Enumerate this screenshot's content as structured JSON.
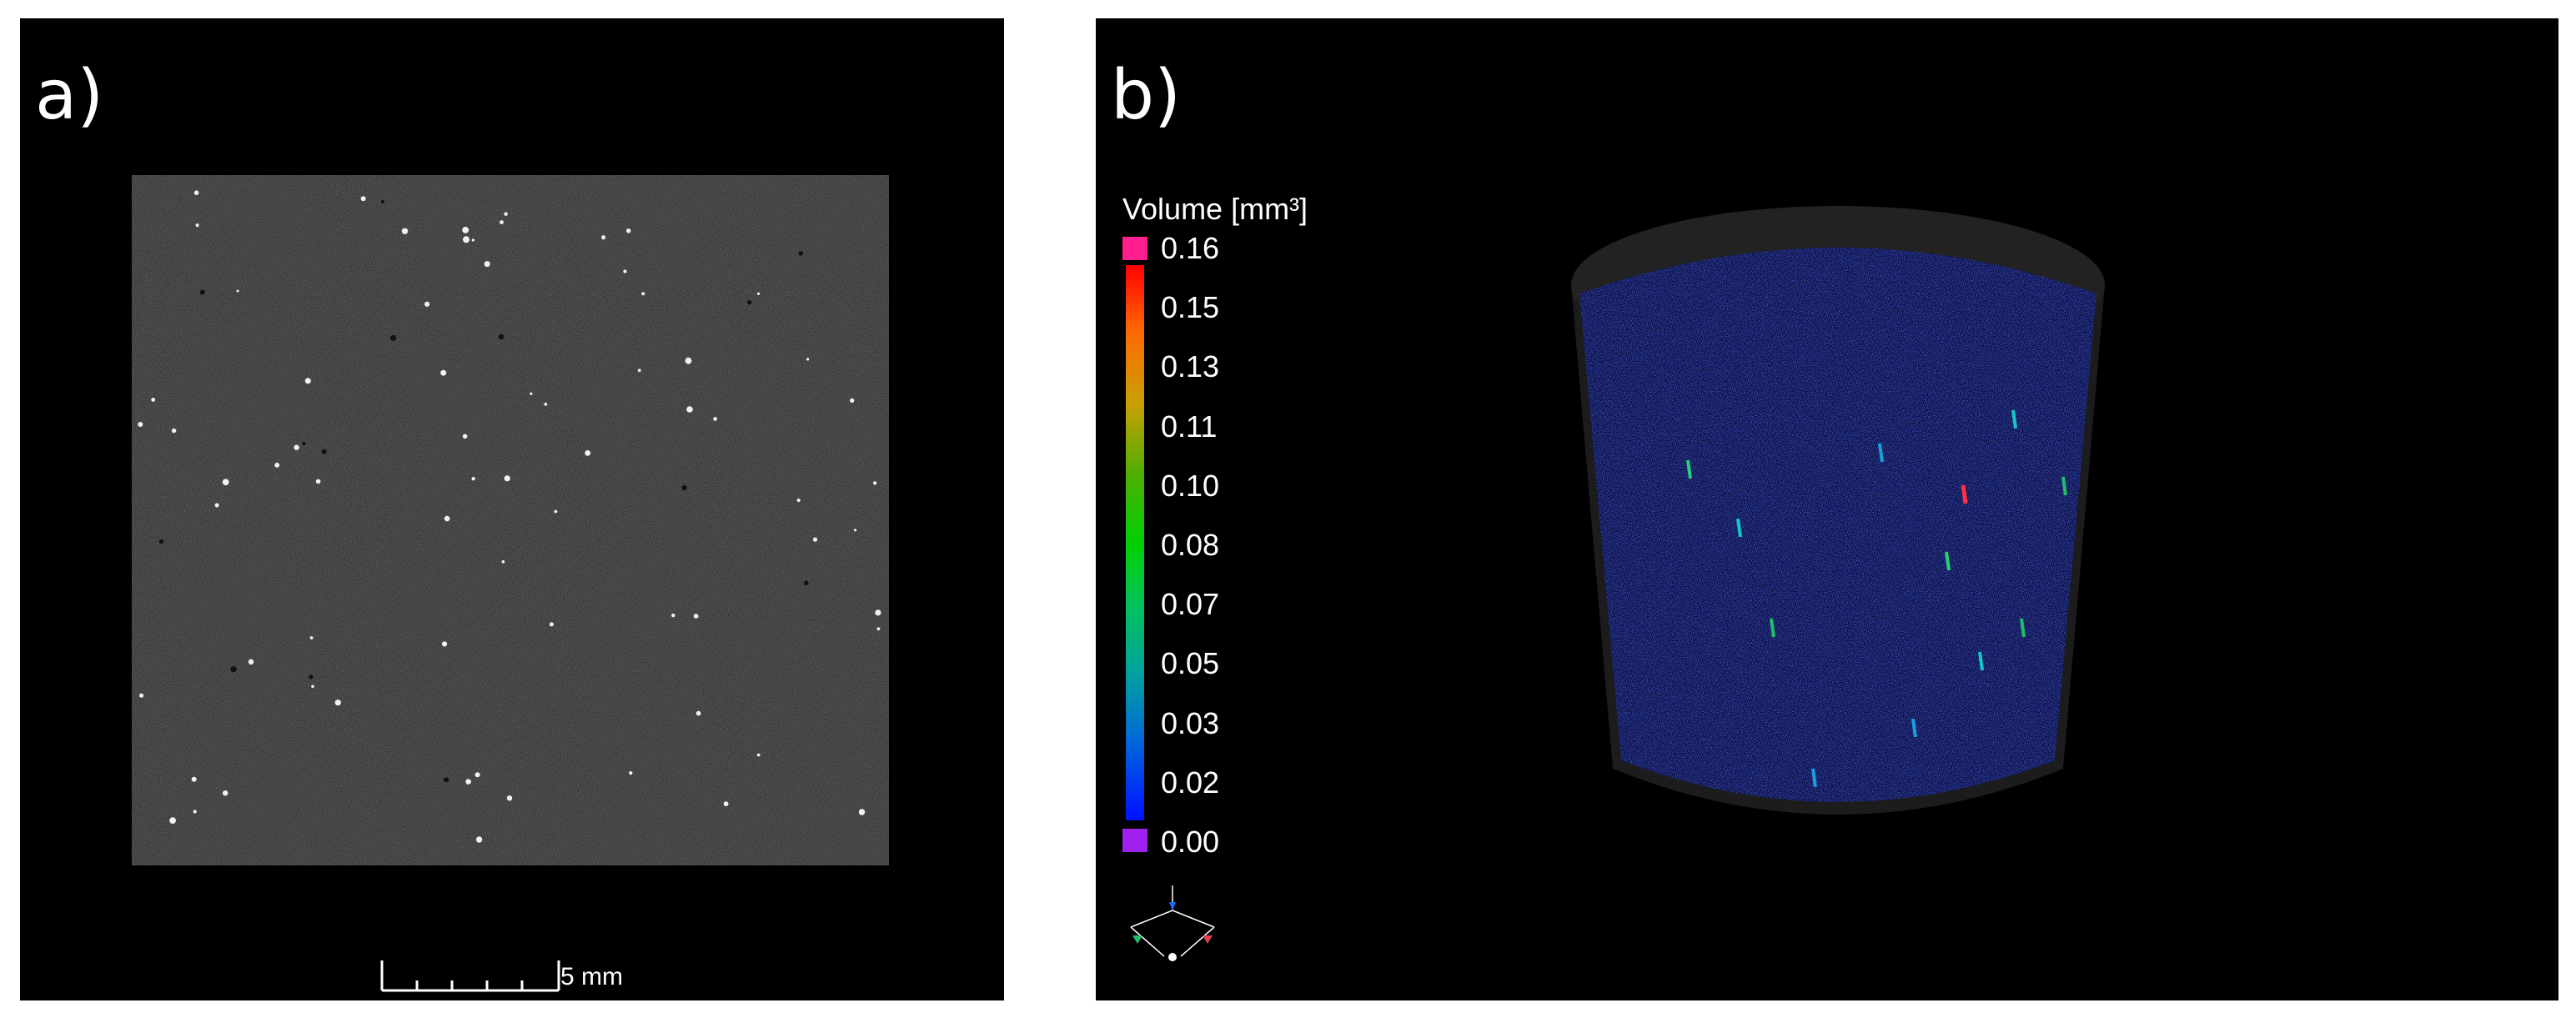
{
  "panels": {
    "a": {
      "label": "a)"
    },
    "b": {
      "label": "b)"
    }
  },
  "scale_bar": {
    "label": "5 mm"
  },
  "colorbar": {
    "title": "Volume [mm³]",
    "ticks": [
      "0.16",
      "0.15",
      "0.13",
      "0.11",
      "0.10",
      "0.08",
      "0.07",
      "0.05",
      "0.03",
      "0.02",
      "0.00"
    ],
    "colors": {
      "top_cap": "#ff1f8f",
      "bottom_cap": "#a020f0",
      "gradient": [
        "#ff0000",
        "#ff6a00",
        "#c8a000",
        "#4caf00",
        "#00d000",
        "#00c060",
        "#00a0a0",
        "#0060e0",
        "#0010ff"
      ]
    }
  },
  "orientation_gizmo": {
    "icon": "axes-orientation-icon"
  },
  "colors": {
    "background": "#000000",
    "slice_gray": "#3a3a3a",
    "cylinder_fill": "#2a2a2a",
    "pore_blue": "#1a2cff"
  }
}
